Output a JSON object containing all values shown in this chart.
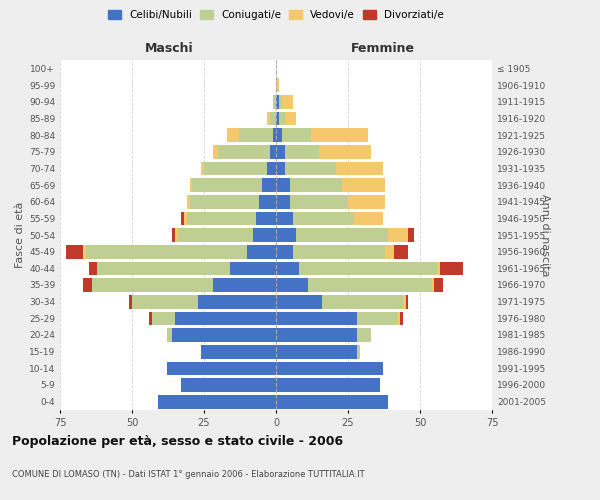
{
  "age_groups": [
    "0-4",
    "5-9",
    "10-14",
    "15-19",
    "20-24",
    "25-29",
    "30-34",
    "35-39",
    "40-44",
    "45-49",
    "50-54",
    "55-59",
    "60-64",
    "65-69",
    "70-74",
    "75-79",
    "80-84",
    "85-89",
    "90-94",
    "95-99",
    "100+"
  ],
  "birth_years": [
    "2001-2005",
    "1996-2000",
    "1991-1995",
    "1986-1990",
    "1981-1985",
    "1976-1980",
    "1971-1975",
    "1966-1970",
    "1961-1965",
    "1956-1960",
    "1951-1955",
    "1946-1950",
    "1941-1945",
    "1936-1940",
    "1931-1935",
    "1926-1930",
    "1921-1925",
    "1916-1920",
    "1911-1915",
    "1906-1910",
    "≤ 1905"
  ],
  "male": {
    "celibe": [
      41,
      33,
      38,
      26,
      36,
      35,
      27,
      22,
      16,
      10,
      8,
      7,
      6,
      5,
      3,
      2,
      1,
      0,
      0,
      0,
      0
    ],
    "coniugato": [
      0,
      0,
      0,
      0,
      2,
      8,
      23,
      42,
      46,
      56,
      26,
      24,
      24,
      24,
      22,
      18,
      12,
      2,
      1,
      0,
      0
    ],
    "vedovo": [
      0,
      0,
      0,
      0,
      0,
      0,
      0,
      0,
      0,
      1,
      1,
      1,
      1,
      1,
      1,
      2,
      4,
      1,
      0,
      0,
      0
    ],
    "divorziato": [
      0,
      0,
      0,
      0,
      0,
      1,
      1,
      3,
      3,
      6,
      1,
      1,
      0,
      0,
      0,
      0,
      0,
      0,
      0,
      0,
      0
    ]
  },
  "female": {
    "nubile": [
      39,
      36,
      37,
      28,
      28,
      28,
      16,
      11,
      8,
      6,
      7,
      6,
      5,
      5,
      3,
      3,
      2,
      1,
      1,
      0,
      0
    ],
    "coniugata": [
      0,
      0,
      0,
      1,
      5,
      14,
      28,
      43,
      48,
      32,
      32,
      21,
      20,
      18,
      18,
      12,
      10,
      2,
      1,
      0,
      0
    ],
    "vedova": [
      0,
      0,
      0,
      0,
      0,
      1,
      1,
      1,
      1,
      3,
      7,
      10,
      13,
      15,
      16,
      18,
      20,
      4,
      4,
      1,
      0
    ],
    "divorziata": [
      0,
      0,
      0,
      0,
      0,
      1,
      1,
      3,
      8,
      5,
      2,
      0,
      0,
      0,
      0,
      0,
      0,
      0,
      0,
      0,
      0
    ]
  },
  "colors": {
    "celibe": "#4472C4",
    "coniugato": "#BFCE93",
    "vedovo": "#F5C96B",
    "divorziato": "#C0392B"
  },
  "xlim": 75,
  "title": "Popolazione per età, sesso e stato civile - 2006",
  "subtitle": "COMUNE DI LOMASO (TN) - Dati ISTAT 1° gennaio 2006 - Elaborazione TUTTITALIA.IT",
  "ylabel_left": "Fasce di età",
  "ylabel_right": "Anni di nascita",
  "xlabel_maschi": "Maschi",
  "xlabel_femmine": "Femmine",
  "legend_labels": [
    "Celibi/Nubili",
    "Coniugati/e",
    "Vedovi/e",
    "Divorziati/e"
  ],
  "bg_color": "#eeeeee",
  "plot_bg_color": "#ffffff"
}
